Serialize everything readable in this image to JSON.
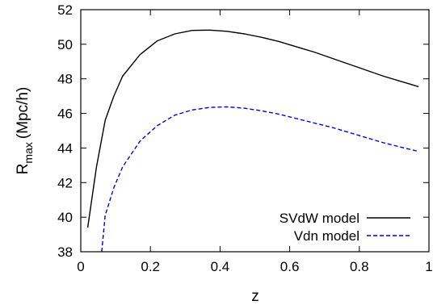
{
  "chart_data": {
    "type": "line",
    "title": "",
    "xlabel": "z",
    "ylabel": "R",
    "ylabel_sub": "max",
    "ylabel_unit": "(Mpc/h)",
    "xlim": [
      0,
      1
    ],
    "ylim": [
      38,
      52
    ],
    "xticks": [
      "0",
      "0.2",
      "0.4",
      "0.6",
      "0.8",
      "1"
    ],
    "yticks": [
      "38",
      "40",
      "42",
      "44",
      "46",
      "48",
      "50",
      "52"
    ],
    "xtick_values": [
      0,
      0.2,
      0.4,
      0.6,
      0.8,
      1
    ],
    "ytick_values": [
      38,
      40,
      42,
      44,
      46,
      48,
      50,
      52
    ],
    "grid": false,
    "legend_position": "bottom-right",
    "series": [
      {
        "name": "SVdW model",
        "color": "#000000",
        "style": "solid",
        "x": [
          0.02,
          0.045,
          0.07,
          0.095,
          0.12,
          0.17,
          0.22,
          0.27,
          0.32,
          0.37,
          0.42,
          0.47,
          0.52,
          0.57,
          0.62,
          0.67,
          0.72,
          0.77,
          0.82,
          0.87,
          0.92,
          0.97
        ],
        "y": [
          39.4,
          42.9,
          45.6,
          47.0,
          48.15,
          49.4,
          50.2,
          50.6,
          50.8,
          50.82,
          50.75,
          50.6,
          50.4,
          50.15,
          49.85,
          49.55,
          49.2,
          48.85,
          48.5,
          48.15,
          47.85,
          47.55
        ]
      },
      {
        "name": "Vdn model",
        "color": "#0000dd",
        "style": "dashed",
        "x": [
          0.06,
          0.07,
          0.095,
          0.12,
          0.17,
          0.22,
          0.27,
          0.32,
          0.37,
          0.42,
          0.47,
          0.52,
          0.57,
          0.62,
          0.67,
          0.72,
          0.77,
          0.82,
          0.87,
          0.92,
          0.97
        ],
        "y": [
          38.0,
          40.1,
          41.7,
          42.9,
          44.4,
          45.3,
          45.9,
          46.2,
          46.35,
          46.38,
          46.3,
          46.15,
          45.95,
          45.7,
          45.45,
          45.2,
          44.9,
          44.6,
          44.3,
          44.05,
          43.8
        ]
      }
    ]
  }
}
